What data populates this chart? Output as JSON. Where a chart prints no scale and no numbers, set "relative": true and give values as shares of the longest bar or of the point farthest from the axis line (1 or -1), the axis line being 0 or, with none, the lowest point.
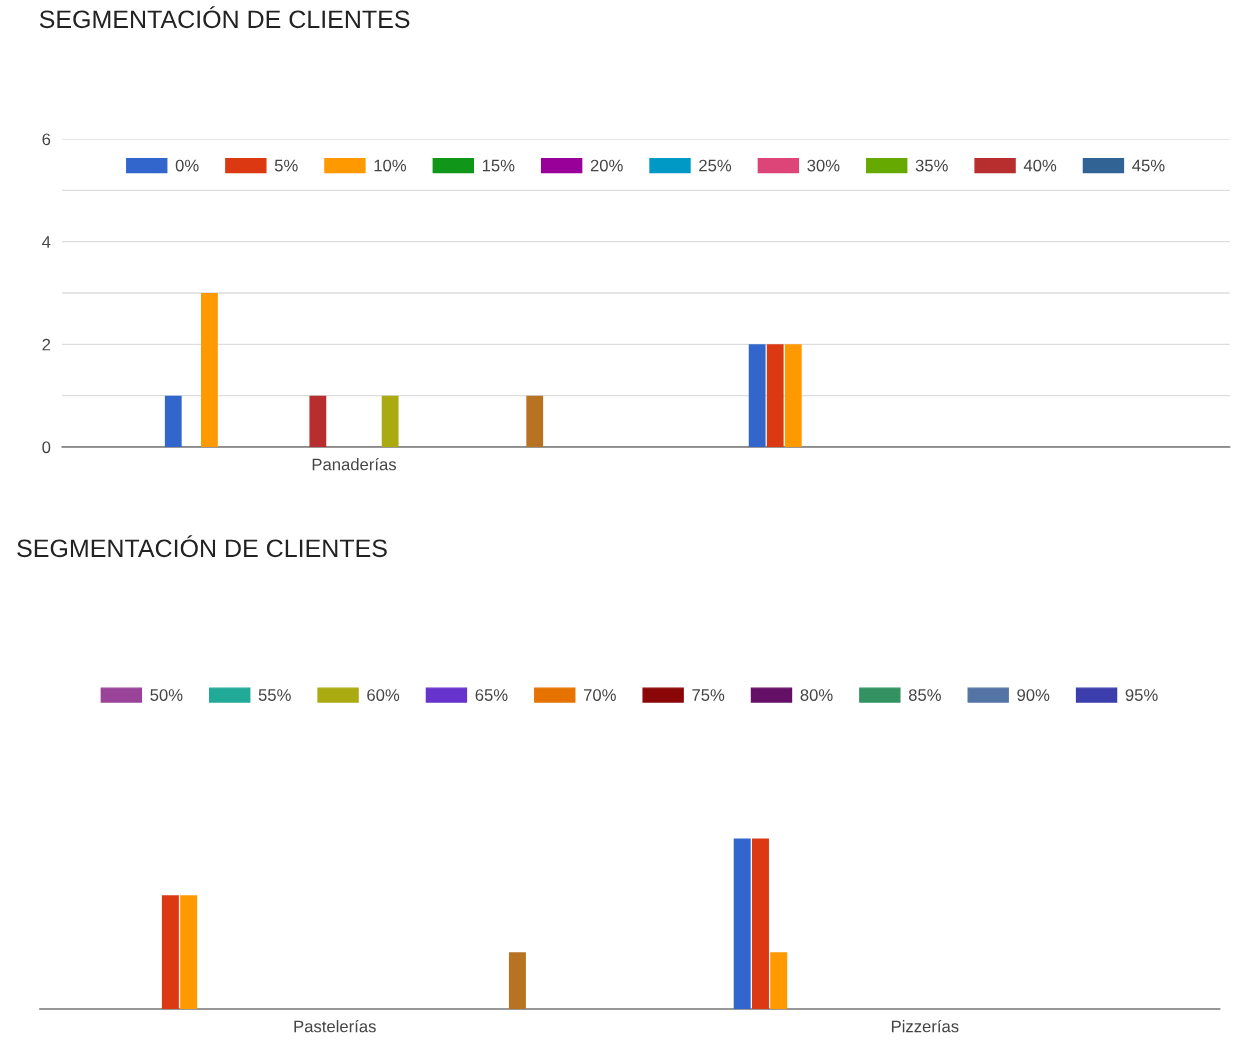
{
  "chart_data": [
    {
      "type": "bar",
      "title": "SEGMENTACIÓN DE CLIENTES",
      "categories": [
        "Panaderías",
        null
      ],
      "ylim": [
        0,
        6
      ],
      "yticks": [
        0,
        {
          "value": 1,
          "label": null
        },
        2,
        {
          "value": 3,
          "label": null
        },
        4,
        {
          "value": 5,
          "label": null
        },
        6
      ],
      "grid": "y",
      "legend": "top",
      "series": [
        {
          "name": "0%",
          "color": "#3366cc",
          "values": [
            1,
            2
          ]
        },
        {
          "name": "5%",
          "color": "#dc3912",
          "values": [
            null,
            2
          ]
        },
        {
          "name": "10%",
          "color": "#ff9900",
          "values": [
            3,
            2
          ]
        },
        {
          "name": "15%",
          "color": "#109618",
          "values": [
            null,
            null
          ]
        },
        {
          "name": "20%",
          "color": "#990099",
          "values": [
            null,
            null
          ]
        },
        {
          "name": "25%",
          "color": "#0099c6",
          "values": [
            null,
            null
          ]
        },
        {
          "name": "30%",
          "color": "#dd4477",
          "values": [
            null,
            null
          ]
        },
        {
          "name": "35%",
          "color": "#66aa00",
          "values": [
            null,
            null
          ]
        },
        {
          "name": "40%",
          "color": "#b82e2e",
          "values": [
            1,
            null
          ]
        },
        {
          "name": "45%",
          "color": "#316395",
          "values": [
            null,
            null
          ]
        },
        {
          "values": [
            null,
            null
          ]
        },
        {
          "values": [
            null,
            null
          ]
        },
        {
          "color": "#aaaa11",
          "values": [
            1,
            null
          ]
        },
        {
          "values": [
            null,
            null
          ]
        },
        {
          "values": [
            null,
            null
          ]
        },
        {
          "values": [
            null,
            null
          ]
        },
        {
          "values": [
            null,
            null
          ]
        },
        {
          "values": [
            null,
            null
          ]
        },
        {
          "values": [
            null,
            null
          ]
        },
        {
          "values": [
            null,
            null
          ]
        },
        {
          "color": "#b77322",
          "values": [
            1,
            null
          ]
        }
      ]
    },
    {
      "type": "bar",
      "title": "SEGMENTACIÓN DE CLIENTES",
      "categories": [
        "Pastelerías",
        "Pizzerías"
      ],
      "relative": true,
      "tick_labels": "x",
      "legend": "top",
      "series": [
        {
          "color": "#3366cc",
          "values": [
            null,
            1
          ]
        },
        {
          "color": "#dc3912",
          "values": [
            0.667,
            1
          ]
        },
        {
          "color": "#ff9900",
          "values": [
            0.667,
            0.333
          ]
        },
        {
          "values": [
            null,
            null
          ]
        },
        {
          "values": [
            null,
            null
          ]
        },
        {
          "values": [
            null,
            null
          ]
        },
        {
          "values": [
            null,
            null
          ]
        },
        {
          "values": [
            null,
            null
          ]
        },
        {
          "values": [
            null,
            null
          ]
        },
        {
          "values": [
            null,
            null
          ]
        },
        {
          "name": "50%",
          "color": "#994499",
          "values": [
            null,
            null
          ]
        },
        {
          "name": "55%",
          "color": "#22aa99",
          "values": [
            null,
            null
          ]
        },
        {
          "name": "60%",
          "color": "#aaaa11",
          "values": [
            null,
            null
          ]
        },
        {
          "name": "65%",
          "color": "#6633cc",
          "values": [
            null,
            null
          ]
        },
        {
          "name": "70%",
          "color": "#e67300",
          "values": [
            null,
            null
          ]
        },
        {
          "name": "75%",
          "color": "#8b0707",
          "values": [
            null,
            null
          ]
        },
        {
          "name": "80%",
          "color": "#651067",
          "values": [
            null,
            null
          ]
        },
        {
          "name": "85%",
          "color": "#329262",
          "values": [
            null,
            null
          ]
        },
        {
          "name": "90%",
          "color": "#5574a6",
          "values": [
            null,
            null
          ]
        },
        {
          "name": "95%",
          "color": "#3b3eac",
          "values": [
            null,
            null
          ]
        },
        {
          "color": "#b77322",
          "values": [
            0.333,
            null
          ]
        }
      ]
    }
  ]
}
